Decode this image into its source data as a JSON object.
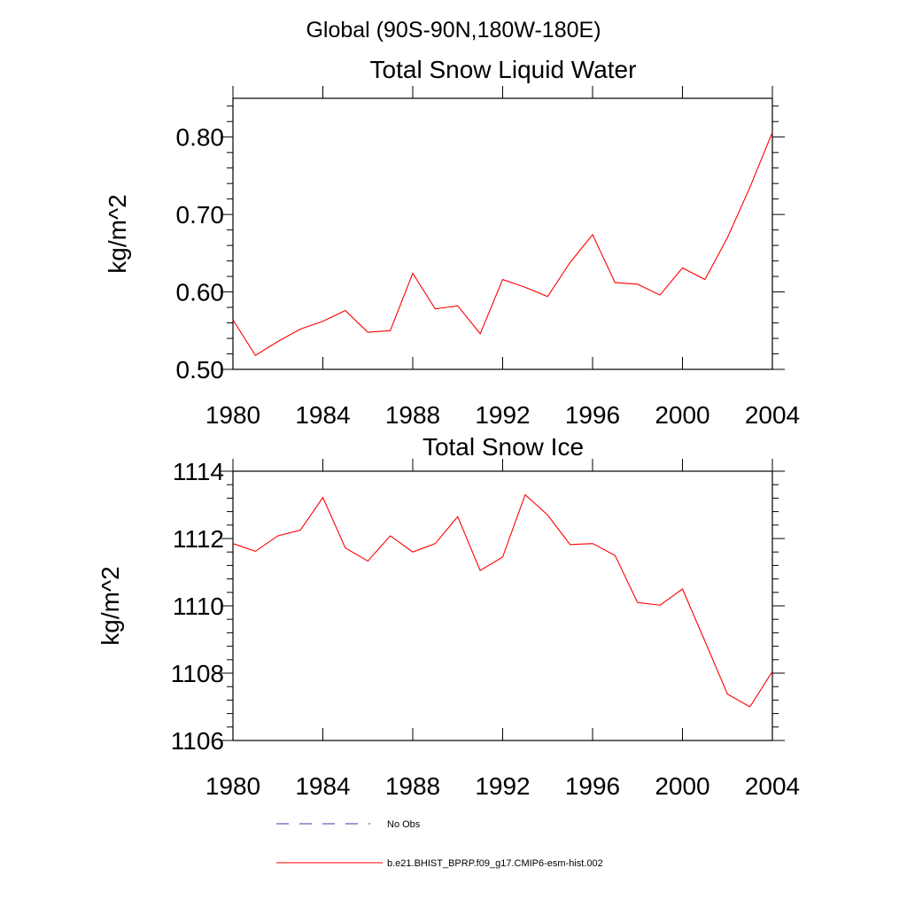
{
  "figure_title": "Global (90S-90N,180W-180E)",
  "colors": {
    "model": "#ff0000",
    "obs": "#3a3aa8",
    "axes": "#000000"
  },
  "legend": [
    {
      "label": "No Obs",
      "style": "dashed",
      "color": "#3a3aa8"
    },
    {
      "label": "b.e21.BHIST_BPRP.f09_g17.CMIP6-esm-hist.002",
      "style": "solid",
      "color": "#ff0000"
    }
  ],
  "chart_data": [
    {
      "type": "line",
      "title": "Total Snow Liquid Water",
      "xlabel": "",
      "ylabel": "kg/m^2",
      "xlim": [
        1980,
        2004
      ],
      "ylim": [
        0.5,
        0.85
      ],
      "xticks": [
        1980,
        1984,
        1988,
        1992,
        1996,
        2000,
        2004
      ],
      "yticks": [
        0.5,
        0.6,
        0.7,
        0.8
      ],
      "ytick_labels": [
        "0.50",
        "0.60",
        "0.70",
        "0.80"
      ],
      "y_minor_step": 0.02,
      "x": [
        1980,
        1981,
        1982,
        1983,
        1984,
        1985,
        1986,
        1987,
        1988,
        1989,
        1990,
        1991,
        1992,
        1993,
        1994,
        1995,
        1996,
        1997,
        1998,
        1999,
        2000,
        2001,
        2002,
        2003,
        2004
      ],
      "series": [
        {
          "name": "b.e21.BHIST_BPRP.f09_g17.CMIP6-esm-hist.002",
          "values": [
            0.564,
            0.518,
            0.536,
            0.552,
            0.562,
            0.576,
            0.548,
            0.55,
            0.624,
            0.578,
            0.582,
            0.546,
            0.616,
            0.606,
            0.594,
            0.638,
            0.674,
            0.612,
            0.61,
            0.596,
            0.631,
            0.616,
            0.67,
            0.735,
            0.806
          ]
        }
      ]
    },
    {
      "type": "line",
      "title": "Total Snow Ice",
      "xlabel": "",
      "ylabel": "kg/m^2",
      "xlim": [
        1980,
        2004
      ],
      "ylim": [
        1106,
        1114
      ],
      "xticks": [
        1980,
        1984,
        1988,
        1992,
        1996,
        2000,
        2004
      ],
      "yticks": [
        1106,
        1108,
        1110,
        1112,
        1114
      ],
      "ytick_labels": [
        "1106",
        "1108",
        "1110",
        "1112",
        "1114"
      ],
      "y_minor_step": 0.4,
      "x": [
        1980,
        1981,
        1982,
        1983,
        1984,
        1985,
        1986,
        1987,
        1988,
        1989,
        1990,
        1991,
        1992,
        1993,
        1994,
        1995,
        1996,
        1997,
        1998,
        1999,
        2000,
        2001,
        2002,
        2003,
        2004
      ],
      "series": [
        {
          "name": "b.e21.BHIST_BPRP.f09_g17.CMIP6-esm-hist.002",
          "values": [
            1111.85,
            1111.62,
            1112.08,
            1112.25,
            1113.22,
            1111.72,
            1111.33,
            1112.08,
            1111.6,
            1111.85,
            1112.65,
            1111.05,
            1111.45,
            1113.3,
            1112.7,
            1111.82,
            1111.85,
            1111.5,
            1110.1,
            1110.02,
            1110.5,
            1108.95,
            1107.38,
            1107.0,
            1108.05
          ]
        }
      ]
    }
  ]
}
